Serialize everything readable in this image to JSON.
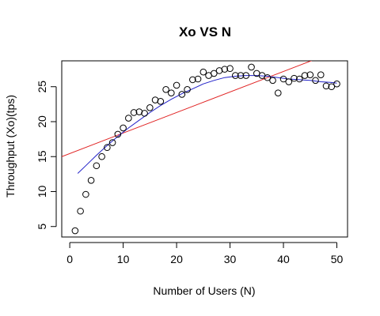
{
  "chart_data": {
    "type": "scatter",
    "title": "Xo VS N",
    "xlabel": "Number of Users (N)",
    "ylabel": "Throughput (Xo)(tps)",
    "xlim": [
      -1.5,
      52
    ],
    "ylim": [
      3.5,
      28.7
    ],
    "xticks": [
      0,
      10,
      20,
      30,
      40,
      50
    ],
    "yticks": [
      5,
      10,
      15,
      20,
      25
    ],
    "grid": false,
    "colors": {
      "points": "#000000",
      "linear_fit": "#e02020",
      "curve_fit": "#2020c8",
      "frame": "#000000"
    },
    "series": [
      {
        "type": "points",
        "x": [
          1,
          2,
          3,
          4,
          5,
          6,
          7,
          8,
          9,
          10,
          11,
          12,
          13,
          14,
          15,
          16,
          17,
          18,
          19,
          20,
          21,
          22,
          23,
          24,
          25,
          26,
          27,
          28,
          29,
          30,
          31,
          32,
          33,
          34,
          35,
          36,
          37,
          38,
          39,
          40,
          41,
          42,
          43,
          44,
          45,
          46,
          47,
          48,
          49,
          50
        ],
        "y": [
          4.4,
          7.2,
          9.6,
          11.6,
          13.7,
          15.0,
          16.3,
          17.0,
          18.2,
          19.1,
          20.5,
          21.3,
          21.4,
          21.2,
          22.0,
          23.1,
          22.9,
          24.6,
          24.1,
          25.2,
          23.9,
          24.6,
          26.0,
          26.1,
          27.1,
          26.6,
          26.9,
          27.3,
          27.5,
          27.6,
          26.6,
          26.6,
          26.6,
          27.8,
          26.9,
          26.6,
          26.3,
          25.9,
          24.1,
          26.1,
          25.7,
          26.2,
          26.1,
          26.6,
          26.7,
          25.9,
          26.7,
          25.1,
          25.0,
          25.4
        ]
      },
      {
        "type": "line",
        "x": [
          -1.5,
          52
        ],
        "y": [
          15.0,
          30.7
        ]
      },
      {
        "type": "line",
        "x": [
          1.5,
          3,
          5,
          7,
          9,
          11,
          13,
          15,
          17,
          19,
          21,
          23,
          25,
          27,
          29,
          31,
          33,
          35,
          37,
          39,
          41,
          43,
          45,
          47,
          49,
          50
        ],
        "y": [
          12.6,
          13.7,
          15.2,
          16.6,
          17.9,
          19.1,
          20.2,
          21.3,
          22.3,
          23.2,
          24.0,
          24.7,
          25.4,
          25.9,
          26.3,
          26.5,
          26.6,
          26.6,
          26.5,
          26.3,
          26.1,
          26.0,
          25.9,
          25.7,
          25.6,
          25.5
        ]
      }
    ]
  }
}
